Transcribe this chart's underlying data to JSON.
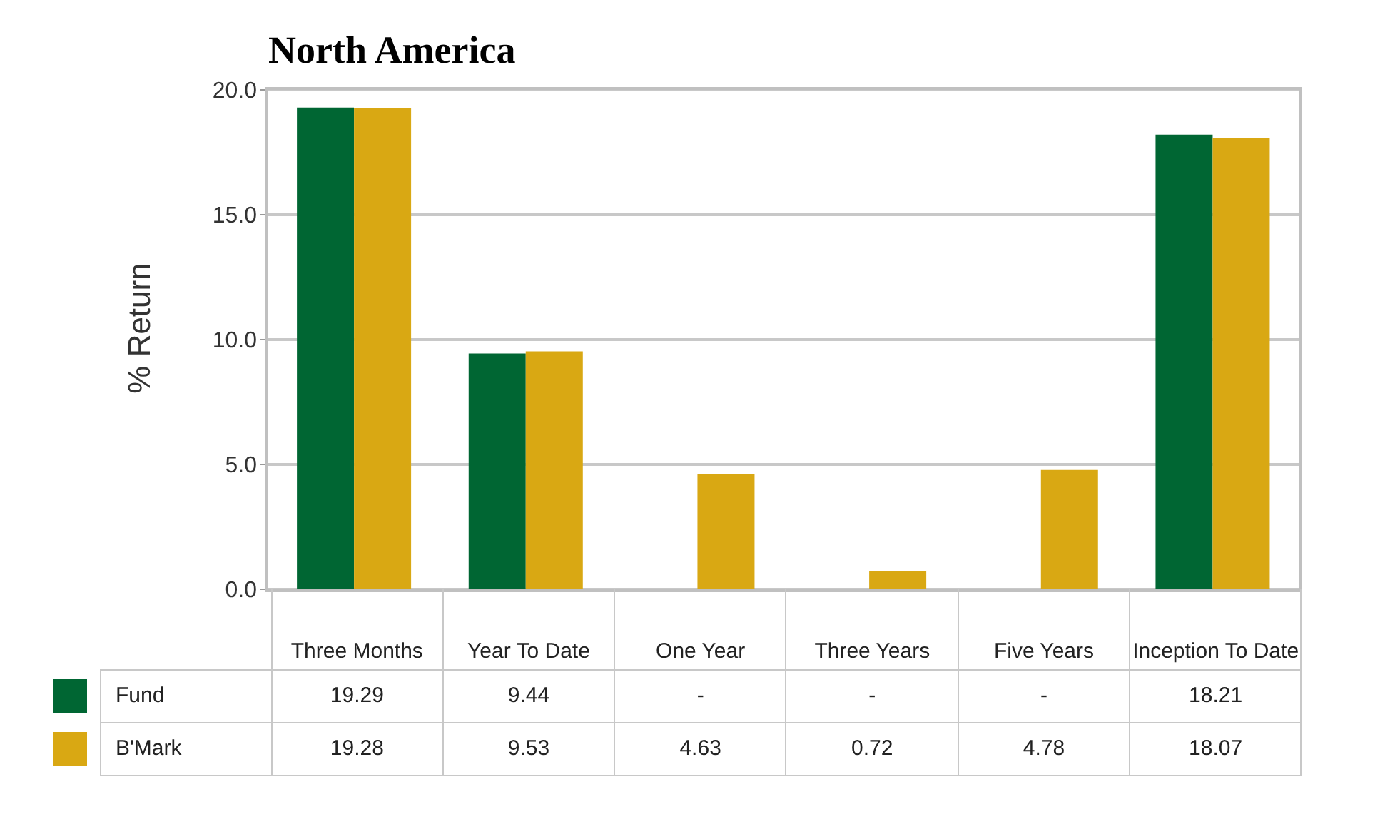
{
  "chart_data": {
    "type": "bar",
    "title": "North America",
    "ylabel": "% Return",
    "categories": [
      "Three Months",
      "Year To Date",
      "One Year",
      "Three Years",
      "Five Years",
      "Inception To Date"
    ],
    "series": [
      {
        "name": "Fund",
        "color": "#006633",
        "values": [
          19.29,
          9.44,
          null,
          null,
          null,
          18.21
        ],
        "value_labels": [
          "19.29",
          "9.44",
          "-",
          "-",
          "-",
          "18.21"
        ]
      },
      {
        "name": "B'Mark",
        "color": "#d9a813",
        "values": [
          19.28,
          9.53,
          4.63,
          0.72,
          4.78,
          18.07
        ],
        "value_labels": [
          "19.28",
          "9.53",
          "4.63",
          "0.72",
          "4.78",
          "18.07"
        ]
      }
    ],
    "ylim": [
      0,
      20
    ],
    "yticks": [
      {
        "value": 0,
        "label": "0.0"
      },
      {
        "value": 5,
        "label": "5.0"
      },
      {
        "value": 10,
        "label": "10.0"
      },
      {
        "value": 15,
        "label": "15.0"
      },
      {
        "value": 20,
        "label": "20.0"
      }
    ],
    "grid": "y",
    "legend": "bottom left"
  }
}
